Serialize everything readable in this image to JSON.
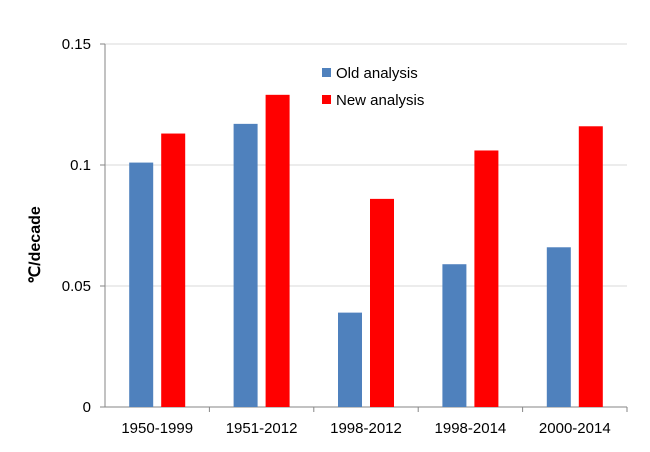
{
  "chart_data": {
    "type": "bar",
    "title": "",
    "xlabel": "",
    "ylabel": "℃/decade",
    "categories": [
      "1950-1999",
      "1951-2012",
      "1998-2012",
      "1998-2014",
      "2000-2014"
    ],
    "series": [
      {
        "name": "Old analysis",
        "color": "#4f81bd",
        "values": [
          0.101,
          0.117,
          0.039,
          0.059,
          0.066
        ]
      },
      {
        "name": "New analysis",
        "color": "#ff0000",
        "values": [
          0.113,
          0.129,
          0.086,
          0.106,
          0.116
        ]
      }
    ],
    "ylim": [
      0,
      0.15
    ],
    "yticks": [
      0,
      0.05,
      0.1,
      0.15
    ],
    "ytick_labels": [
      "0",
      "0.05",
      "0.1",
      "0.15"
    ],
    "grid": true,
    "legend": "top-center"
  }
}
